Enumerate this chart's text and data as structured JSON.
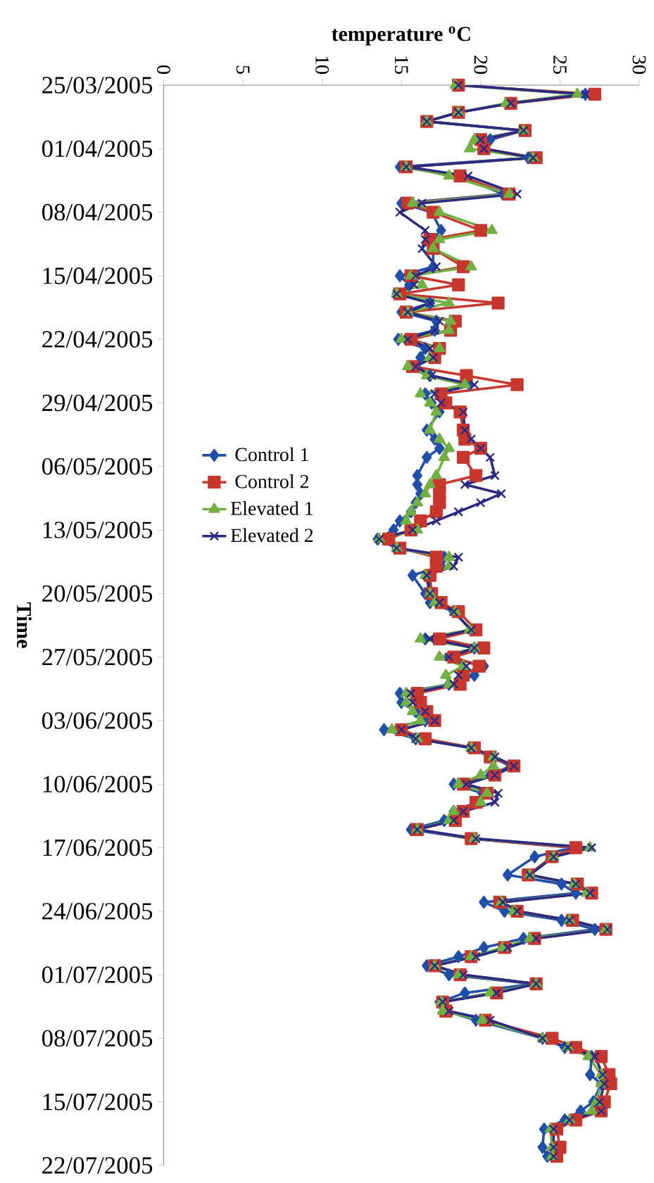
{
  "chart_data": {
    "type": "line",
    "orientation": "horizontal",
    "xlabel": "temperature $^{o}$C",
    "ylabel": "Time",
    "xlim": [
      0,
      30
    ],
    "xticks": [
      0,
      5,
      10,
      15,
      20,
      25,
      30
    ],
    "ylim": [
      "2005-07-22",
      "2005-03-25"
    ],
    "yticks": [
      {
        "value": "2005-03-25",
        "label": "25/03/2005"
      },
      {
        "value": "2005-04-01",
        "label": "01/04/2005"
      },
      {
        "value": "2005-04-08",
        "label": "08/04/2005"
      },
      {
        "value": "2005-04-15",
        "label": "15/04/2005"
      },
      {
        "value": "2005-04-22",
        "label": "22/04/2005"
      },
      {
        "value": "2005-04-29",
        "label": "29/04/2005"
      },
      {
        "value": "2005-05-06",
        "label": "06/05/2005"
      },
      {
        "value": "2005-05-13",
        "label": "13/05/2005"
      },
      {
        "value": "2005-05-20",
        "label": "20/05/2005"
      },
      {
        "value": "2005-05-27",
        "label": "27/05/2005"
      },
      {
        "value": "2005-06-03",
        "label": "03/06/2005"
      },
      {
        "value": "2005-06-10",
        "label": "10/06/2005"
      },
      {
        "value": "2005-06-17",
        "label": "17/06/2005"
      },
      {
        "value": "2005-06-24",
        "label": "24/06/2005"
      },
      {
        "value": "2005-07-01",
        "label": "01/07/2005"
      },
      {
        "value": "2005-07-08",
        "label": "08/07/2005"
      },
      {
        "value": "2005-07-15",
        "label": "15/07/2005"
      },
      {
        "value": "2005-07-22",
        "label": "22/07/2005"
      }
    ],
    "x": [
      "2005-03-25",
      "2005-03-26",
      "2005-03-27",
      "2005-03-28",
      "2005-03-29",
      "2005-03-30",
      "2005-03-31",
      "2005-04-01",
      "2005-04-02",
      "2005-04-03",
      "2005-04-04",
      "2005-04-06",
      "2005-04-07",
      "2005-04-08",
      "2005-04-10",
      "2005-04-11",
      "2005-04-12",
      "2005-04-14",
      "2005-04-15",
      "2005-04-16",
      "2005-04-17",
      "2005-04-18",
      "2005-04-19",
      "2005-04-20",
      "2005-04-21",
      "2005-04-22",
      "2005-04-23",
      "2005-04-24",
      "2005-04-25",
      "2005-04-26",
      "2005-04-27",
      "2005-04-28",
      "2005-04-29",
      "2005-04-30",
      "2005-05-02",
      "2005-05-03",
      "2005-05-04",
      "2005-05-05",
      "2005-05-07",
      "2005-05-08",
      "2005-05-09",
      "2005-05-10",
      "2005-05-11",
      "2005-05-12",
      "2005-05-13",
      "2005-05-14",
      "2005-05-15",
      "2005-05-16",
      "2005-05-17",
      "2005-05-18",
      "2005-05-20",
      "2005-05-21",
      "2005-05-22",
      "2005-05-24",
      "2005-05-25",
      "2005-05-26",
      "2005-05-27",
      "2005-05-28",
      "2005-05-29",
      "2005-05-30",
      "2005-05-31",
      "2005-06-01",
      "2005-06-02",
      "2005-06-03",
      "2005-06-04",
      "2005-06-05",
      "2005-06-06",
      "2005-06-07",
      "2005-06-08",
      "2005-06-09",
      "2005-06-10",
      "2005-06-11",
      "2005-06-12",
      "2005-06-13",
      "2005-06-14",
      "2005-06-15",
      "2005-06-16",
      "2005-06-17",
      "2005-06-18",
      "2005-06-20",
      "2005-06-21",
      "2005-06-22",
      "2005-06-23",
      "2005-06-24",
      "2005-06-25",
      "2005-06-26",
      "2005-06-27",
      "2005-06-28",
      "2005-06-29",
      "2005-06-30",
      "2005-07-01",
      "2005-07-02",
      "2005-07-03",
      "2005-07-04",
      "2005-07-05",
      "2005-07-06",
      "2005-07-08",
      "2005-07-09",
      "2005-07-10",
      "2005-07-12",
      "2005-07-13",
      "2005-07-15",
      "2005-07-16",
      "2005-07-17",
      "2005-07-18",
      "2005-07-20",
      "2005-07-21"
    ],
    "series": [
      {
        "name": "Control 1",
        "color": "#1f4fa8",
        "marker": "diamond",
        "values": [
          18.6,
          26.6,
          21.9,
          18.6,
          16.6,
          22.7,
          20.6,
          20.2,
          23.0,
          14.9,
          18.7,
          21.4,
          15.0,
          16.9,
          17.5,
          17.0,
          17.0,
          17.0,
          14.9,
          15.5,
          14.7,
          16.8,
          15.0,
          17.2,
          17.1,
          14.8,
          16.5,
          16.2,
          15.9,
          16.8,
          19.3,
          16.5,
          16.9,
          17.4,
          16.6,
          17.1,
          17.4,
          16.6,
          16.0,
          16.0,
          16.2,
          15.9,
          15.6,
          14.9,
          14.5,
          13.5,
          14.7,
          17.7,
          17.5,
          15.7,
          16.5,
          16.8,
          18.3,
          19.4,
          16.5,
          19.6,
          18.0,
          20.2,
          19.6,
          18.0,
          14.9,
          15.0,
          15.9,
          16.5,
          13.9,
          15.9,
          19.4,
          20.6,
          21.9,
          20.6,
          18.3,
          20.1,
          19.7,
          18.3,
          17.7,
          15.6,
          19.4,
          25.8,
          23.4,
          21.7,
          25.1,
          26.0,
          20.2,
          21.5,
          25.1,
          27.2,
          22.7,
          20.2,
          18.6,
          16.6,
          18.0,
          23.3,
          19.0,
          17.4,
          17.8,
          19.7,
          23.9,
          25.3,
          27.0,
          26.9,
          27.6,
          27.1,
          26.3,
          25.3,
          24.0,
          23.9,
          24.2
        ]
      },
      {
        "name": "Control 2",
        "color": "#c8372d",
        "marker": "square",
        "values": [
          18.6,
          27.2,
          21.9,
          18.6,
          16.6,
          22.8,
          20.0,
          20.2,
          23.5,
          15.3,
          18.7,
          21.8,
          15.4,
          17.0,
          20.0,
          16.8,
          17.0,
          18.9,
          15.6,
          18.6,
          14.9,
          21.1,
          15.3,
          18.4,
          18.1,
          15.6,
          17.4,
          17.1,
          15.7,
          19.1,
          22.3,
          17.5,
          17.8,
          18.7,
          18.9,
          19.0,
          20.0,
          18.9,
          19.7,
          17.4,
          17.4,
          17.4,
          17.2,
          16.2,
          15.6,
          14.2,
          14.9,
          17.2,
          17.2,
          16.8,
          16.9,
          17.5,
          18.6,
          19.7,
          17.4,
          20.2,
          18.3,
          19.9,
          18.9,
          18.7,
          16.0,
          16.2,
          16.6,
          17.1,
          15.0,
          16.5,
          19.6,
          20.6,
          22.1,
          20.9,
          18.9,
          20.4,
          19.7,
          18.9,
          18.4,
          16.0,
          19.4,
          26.0,
          24.5,
          23.0,
          26.1,
          27.0,
          21.2,
          22.3,
          25.8,
          27.9,
          23.4,
          21.5,
          19.4,
          17.1,
          18.7,
          23.5,
          21.0,
          17.6,
          17.8,
          20.3,
          24.5,
          26.0,
          27.6,
          28.1,
          28.2,
          27.8,
          27.6,
          26.0,
          24.8,
          25.0,
          24.8
        ]
      },
      {
        "name": "Elevated 1",
        "color": "#72b043",
        "marker": "triangle",
        "values": [
          18.4,
          26.1,
          21.6,
          18.6,
          16.6,
          22.7,
          19.6,
          19.3,
          23.3,
          15.3,
          18.0,
          21.8,
          15.7,
          17.4,
          20.7,
          17.4,
          17.0,
          19.4,
          15.6,
          16.3,
          14.7,
          18.0,
          15.4,
          18.1,
          18.0,
          15.0,
          17.4,
          16.8,
          15.4,
          16.6,
          19.0,
          16.2,
          16.8,
          17.2,
          16.8,
          17.4,
          18.0,
          17.7,
          17.2,
          16.8,
          16.5,
          16.0,
          15.6,
          15.3,
          16.0,
          13.6,
          14.7,
          18.0,
          18.0,
          16.5,
          16.8,
          17.1,
          18.4,
          19.3,
          16.2,
          19.6,
          17.4,
          18.9,
          17.8,
          18.0,
          15.3,
          15.3,
          15.7,
          16.2,
          14.4,
          16.0,
          19.4,
          20.8,
          20.8,
          20.0,
          18.6,
          20.4,
          20.0,
          18.3,
          18.0,
          16.0,
          19.6,
          26.9,
          24.6,
          23.1,
          25.9,
          26.7,
          21.3,
          22.1,
          25.6,
          27.9,
          23.1,
          21.4,
          19.4,
          17.1,
          18.6,
          23.5,
          20.6,
          17.5,
          17.6,
          20.1,
          23.9,
          25.5,
          26.8,
          27.6,
          27.6,
          27.3,
          27.0,
          25.6,
          24.4,
          24.5,
          24.5
        ]
      },
      {
        "name": "Elevated 2",
        "color": "#2b2a83",
        "marker": "cross",
        "values": [
          18.6,
          26.6,
          21.9,
          18.6,
          16.6,
          22.7,
          20.0,
          20.2,
          23.3,
          15.3,
          19.2,
          22.3,
          16.3,
          14.9,
          16.5,
          16.5,
          16.3,
          17.2,
          15.9,
          15.8,
          14.7,
          16.8,
          15.4,
          17.4,
          17.1,
          15.4,
          16.8,
          17.0,
          15.9,
          16.9,
          19.6,
          17.1,
          17.5,
          18.9,
          19.0,
          19.4,
          20.0,
          20.6,
          20.9,
          19.0,
          21.3,
          20.0,
          18.6,
          17.2,
          15.7,
          13.6,
          14.7,
          18.6,
          18.3,
          16.6,
          16.8,
          17.4,
          18.3,
          19.4,
          16.8,
          19.6,
          18.0,
          19.1,
          18.6,
          18.3,
          15.6,
          15.7,
          16.5,
          17.1,
          15.0,
          15.9,
          19.4,
          20.9,
          22.1,
          20.9,
          19.1,
          21.1,
          20.9,
          18.9,
          18.3,
          16.0,
          19.7,
          27.0,
          24.6,
          23.1,
          26.0,
          26.9,
          21.4,
          22.3,
          25.6,
          28.0,
          23.5,
          21.7,
          19.7,
          17.1,
          18.9,
          23.5,
          21.0,
          17.6,
          18.0,
          20.6,
          23.9,
          25.5,
          27.2,
          27.7,
          27.8,
          27.5,
          27.6,
          25.6,
          24.6,
          24.6,
          24.6
        ]
      }
    ],
    "line_style": "solid",
    "grid": false,
    "legend": "left"
  }
}
